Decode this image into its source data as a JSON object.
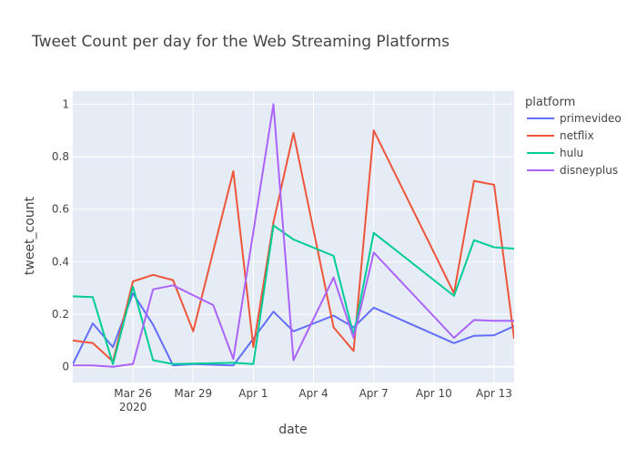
{
  "chart_data": {
    "type": "line",
    "title": "Tweet Count per day for the Web Streaming Platforms",
    "xlabel": "date",
    "ylabel": "tweet_count",
    "legend_title": "platform",
    "legend_position": "top-right",
    "grid": true,
    "colors": {
      "plot_bg": "#e5ecf6",
      "grid": "#ffffff",
      "text": "#444444",
      "title": "#444444"
    },
    "x_range": [
      "2020-03-23",
      "2020-04-14"
    ],
    "ylim": [
      -0.06,
      1.05
    ],
    "x_ticks": [
      {
        "date": "2020-03-26",
        "label": "Mar 26",
        "sublabel": "2020"
      },
      {
        "date": "2020-03-29",
        "label": "Mar 29"
      },
      {
        "date": "2020-04-01",
        "label": "Apr 1"
      },
      {
        "date": "2020-04-04",
        "label": "Apr 4"
      },
      {
        "date": "2020-04-07",
        "label": "Apr 7"
      },
      {
        "date": "2020-04-10",
        "label": "Apr 10"
      },
      {
        "date": "2020-04-13",
        "label": "Apr 13"
      }
    ],
    "y_ticks": [
      {
        "value": 0,
        "label": "0"
      },
      {
        "value": 0.2,
        "label": "0.2"
      },
      {
        "value": 0.4,
        "label": "0.4"
      },
      {
        "value": 0.6,
        "label": "0.6"
      },
      {
        "value": 0.8,
        "label": "0.8"
      },
      {
        "value": 1,
        "label": "1"
      }
    ],
    "series": [
      {
        "name": "primevideo",
        "color": "#636efa",
        "points": [
          [
            "2020-03-23",
            0.01
          ],
          [
            "2020-03-24",
            0.165
          ],
          [
            "2020-03-25",
            0.075
          ],
          [
            "2020-03-26",
            0.28
          ],
          [
            "2020-03-27",
            0.16
          ],
          [
            "2020-03-28",
            0.005
          ],
          [
            "2020-03-29",
            0.01
          ],
          [
            "2020-03-31",
            0.005
          ],
          [
            "2020-04-02",
            0.21
          ],
          [
            "2020-04-03",
            0.135
          ],
          [
            "2020-04-05",
            0.195
          ],
          [
            "2020-04-06",
            0.15
          ],
          [
            "2020-04-07",
            0.225
          ],
          [
            "2020-04-11",
            0.09
          ],
          [
            "2020-04-12",
            0.118
          ],
          [
            "2020-04-13",
            0.12
          ],
          [
            "2020-04-14",
            0.155
          ]
        ]
      },
      {
        "name": "netflix",
        "color": "#ef553b",
        "points": [
          [
            "2020-03-23",
            0.1
          ],
          [
            "2020-03-24",
            0.09
          ],
          [
            "2020-03-25",
            0.02
          ],
          [
            "2020-03-26",
            0.325
          ],
          [
            "2020-03-27",
            0.35
          ],
          [
            "2020-03-28",
            0.33
          ],
          [
            "2020-03-29",
            0.135
          ],
          [
            "2020-03-31",
            0.745
          ],
          [
            "2020-04-01",
            0.075
          ],
          [
            "2020-04-02",
            0.55
          ],
          [
            "2020-04-03",
            0.89
          ],
          [
            "2020-04-05",
            0.15
          ],
          [
            "2020-04-06",
            0.06
          ],
          [
            "2020-04-07",
            0.9
          ],
          [
            "2020-04-11",
            0.28
          ],
          [
            "2020-04-12",
            0.708
          ],
          [
            "2020-04-13",
            0.693
          ],
          [
            "2020-04-14",
            0.107
          ]
        ]
      },
      {
        "name": "hulu",
        "color": "#00cc96",
        "points": [
          [
            "2020-03-23",
            0.268
          ],
          [
            "2020-03-24",
            0.265
          ],
          [
            "2020-03-25",
            0.01
          ],
          [
            "2020-03-26",
            0.305
          ],
          [
            "2020-03-27",
            0.025
          ],
          [
            "2020-03-28",
            0.01
          ],
          [
            "2020-03-31",
            0.015
          ],
          [
            "2020-04-01",
            0.01
          ],
          [
            "2020-04-02",
            0.538
          ],
          [
            "2020-04-03",
            0.485
          ],
          [
            "2020-04-05",
            0.422
          ],
          [
            "2020-04-06",
            0.12
          ],
          [
            "2020-04-07",
            0.51
          ],
          [
            "2020-04-11",
            0.27
          ],
          [
            "2020-04-12",
            0.482
          ],
          [
            "2020-04-13",
            0.455
          ],
          [
            "2020-04-14",
            0.45
          ]
        ]
      },
      {
        "name": "disneyplus",
        "color": "#ab63fa",
        "points": [
          [
            "2020-03-23",
            0.005
          ],
          [
            "2020-03-24",
            0.005
          ],
          [
            "2020-03-25",
            0.0
          ],
          [
            "2020-03-26",
            0.01
          ],
          [
            "2020-03-27",
            0.295
          ],
          [
            "2020-03-28",
            0.31
          ],
          [
            "2020-03-30",
            0.235
          ],
          [
            "2020-03-31",
            0.03
          ],
          [
            "2020-04-02",
            1.0
          ],
          [
            "2020-04-03",
            0.025
          ],
          [
            "2020-04-05",
            0.34
          ],
          [
            "2020-04-06",
            0.11
          ],
          [
            "2020-04-07",
            0.435
          ],
          [
            "2020-04-11",
            0.11
          ],
          [
            "2020-04-12",
            0.178
          ],
          [
            "2020-04-13",
            0.175
          ],
          [
            "2020-04-14",
            0.175
          ]
        ]
      }
    ]
  }
}
